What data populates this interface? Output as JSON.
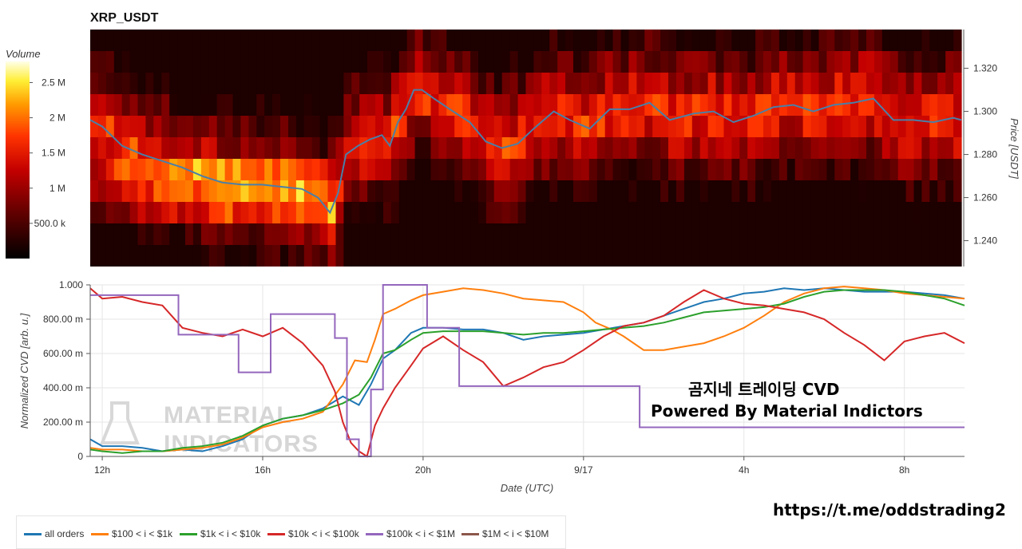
{
  "chart_data": [
    {
      "type": "heatmap",
      "title": "XRP_USDT",
      "ylabel": "Price [USDT]",
      "ylim": [
        1.228,
        1.338
      ],
      "y_ticks": [
        {
          "value": 1.24,
          "label": "1.240"
        },
        {
          "value": 1.26,
          "label": "1.260"
        },
        {
          "value": 1.28,
          "label": "1.280"
        },
        {
          "value": 1.3,
          "label": "1.300"
        },
        {
          "value": 1.32,
          "label": "1.320"
        }
      ],
      "colorbar": {
        "title": "Volume",
        "range": [
          0,
          2.8
        ],
        "ticks": [
          {
            "value": 0.5,
            "label": "500.0 k"
          },
          {
            "value": 1.0,
            "label": "1 M"
          },
          {
            "value": 1.5,
            "label": "1.5 M"
          },
          {
            "value": 2.0,
            "label": "2 M"
          },
          {
            "value": 2.5,
            "label": "2.5 M"
          }
        ]
      },
      "price_line": {
        "color": "#4a7fa8",
        "x": [
          11.7,
          12.0,
          12.5,
          13.0,
          13.5,
          14.0,
          14.5,
          15.0,
          15.5,
          16.0,
          16.5,
          17.0,
          17.4,
          17.7,
          17.9,
          18.1,
          18.4,
          18.7,
          19.0,
          19.2,
          19.4,
          19.6,
          19.8,
          20.0,
          20.3,
          20.7,
          21.2,
          21.6,
          22.0,
          22.4,
          22.8,
          23.3,
          23.7,
          24.2,
          24.7,
          25.2,
          25.7,
          26.2,
          26.8,
          27.3,
          27.8,
          28.3,
          28.8,
          29.3,
          29.8,
          30.3,
          30.8,
          31.3,
          31.8,
          32.3,
          32.8,
          33.3,
          33.5
        ],
        "y": [
          1.296,
          1.293,
          1.284,
          1.28,
          1.277,
          1.274,
          1.27,
          1.267,
          1.266,
          1.266,
          1.265,
          1.264,
          1.26,
          1.253,
          1.262,
          1.28,
          1.284,
          1.287,
          1.289,
          1.284,
          1.295,
          1.301,
          1.31,
          1.31,
          1.306,
          1.301,
          1.295,
          1.286,
          1.283,
          1.285,
          1.292,
          1.3,
          1.296,
          1.292,
          1.301,
          1.301,
          1.304,
          1.296,
          1.299,
          1.3,
          1.295,
          1.298,
          1.302,
          1.303,
          1.3,
          1.303,
          1.304,
          1.306,
          1.296,
          1.296,
          1.295,
          1.297,
          1.296
        ]
      }
    },
    {
      "type": "line",
      "title": "",
      "xlabel": "Date (UTC)",
      "ylabel": "Normalized CVD [arb. u.]",
      "xlim": [
        11.7,
        33.5
      ],
      "ylim": [
        0,
        1
      ],
      "x_ticks": [
        {
          "value": 12,
          "label": "12h"
        },
        {
          "value": 16,
          "label": "16h"
        },
        {
          "value": 20,
          "label": "20h"
        },
        {
          "value": 24,
          "label": "9/17"
        },
        {
          "value": 28,
          "label": "4h"
        },
        {
          "value": 32,
          "label": "8h"
        }
      ],
      "y_ticks": [
        {
          "value": 0,
          "label": "0"
        },
        {
          "value": 0.2,
          "label": "200.00 m"
        },
        {
          "value": 0.4,
          "label": "400.00 m"
        },
        {
          "value": 0.6,
          "label": "600.00 m"
        },
        {
          "value": 0.8,
          "label": "800.00 m"
        },
        {
          "value": 1.0,
          "label": "1.000"
        }
      ],
      "series": [
        {
          "name": "all orders",
          "color": "#1f77b4",
          "x": [
            11.7,
            12.0,
            12.5,
            13.0,
            13.5,
            14.0,
            14.5,
            15.0,
            15.5,
            16.0,
            16.5,
            17.0,
            17.5,
            18.0,
            18.4,
            18.7,
            19.0,
            19.3,
            19.7,
            20.0,
            20.5,
            21.0,
            21.5,
            22.0,
            22.5,
            23.0,
            23.5,
            24.0,
            24.5,
            25.0,
            25.5,
            26.0,
            26.5,
            27.0,
            27.5,
            28.0,
            28.5,
            29.0,
            29.5,
            30.0,
            30.5,
            31.0,
            31.5,
            32.0,
            32.5,
            33.0,
            33.5
          ],
          "y": [
            0.1,
            0.06,
            0.06,
            0.05,
            0.03,
            0.04,
            0.03,
            0.06,
            0.1,
            0.18,
            0.22,
            0.24,
            0.28,
            0.35,
            0.3,
            0.42,
            0.57,
            0.62,
            0.72,
            0.75,
            0.75,
            0.74,
            0.74,
            0.72,
            0.68,
            0.7,
            0.71,
            0.72,
            0.74,
            0.76,
            0.78,
            0.82,
            0.86,
            0.9,
            0.92,
            0.95,
            0.96,
            0.98,
            0.97,
            0.98,
            0.97,
            0.96,
            0.96,
            0.96,
            0.95,
            0.94,
            0.92
          ]
        },
        {
          "name": "$100 < i < $1k",
          "color": "#ff7f0e",
          "x": [
            11.7,
            12.0,
            12.5,
            13.0,
            13.5,
            14.0,
            14.5,
            15.0,
            15.5,
            16.0,
            16.5,
            17.0,
            17.5,
            18.0,
            18.3,
            18.6,
            18.8,
            19.0,
            19.3,
            19.7,
            20.0,
            20.5,
            21.0,
            21.5,
            22.0,
            22.5,
            23.0,
            23.5,
            24.0,
            24.3,
            24.7,
            25.0,
            25.5,
            26.0,
            26.5,
            27.0,
            27.5,
            28.0,
            28.5,
            29.0,
            29.5,
            30.0,
            30.5,
            31.0,
            31.5,
            32.0,
            32.5,
            33.0,
            33.5
          ],
          "y": [
            0.05,
            0.04,
            0.04,
            0.03,
            0.03,
            0.04,
            0.05,
            0.07,
            0.11,
            0.17,
            0.2,
            0.22,
            0.26,
            0.42,
            0.56,
            0.55,
            0.68,
            0.83,
            0.86,
            0.91,
            0.94,
            0.96,
            0.98,
            0.97,
            0.95,
            0.92,
            0.91,
            0.9,
            0.84,
            0.78,
            0.74,
            0.7,
            0.62,
            0.62,
            0.64,
            0.66,
            0.7,
            0.75,
            0.82,
            0.9,
            0.95,
            0.98,
            0.99,
            0.98,
            0.97,
            0.95,
            0.94,
            0.93,
            0.92
          ]
        },
        {
          "name": "$1k < i < $10k",
          "color": "#2ca02c",
          "x": [
            11.7,
            12.0,
            12.5,
            13.0,
            13.5,
            14.0,
            14.5,
            15.0,
            15.5,
            16.0,
            16.5,
            17.0,
            17.5,
            18.0,
            18.4,
            18.7,
            19.0,
            19.3,
            19.7,
            20.0,
            20.5,
            21.0,
            21.5,
            22.0,
            22.5,
            23.0,
            23.5,
            24.0,
            24.5,
            25.0,
            25.5,
            26.0,
            26.5,
            27.0,
            27.5,
            28.0,
            28.5,
            29.0,
            29.5,
            30.0,
            30.5,
            31.0,
            31.5,
            32.0,
            32.5,
            33.0,
            33.5
          ],
          "y": [
            0.04,
            0.03,
            0.02,
            0.03,
            0.03,
            0.05,
            0.06,
            0.08,
            0.12,
            0.18,
            0.22,
            0.24,
            0.27,
            0.31,
            0.36,
            0.46,
            0.6,
            0.62,
            0.68,
            0.72,
            0.73,
            0.73,
            0.73,
            0.72,
            0.71,
            0.72,
            0.72,
            0.73,
            0.74,
            0.75,
            0.76,
            0.78,
            0.81,
            0.84,
            0.85,
            0.86,
            0.87,
            0.89,
            0.93,
            0.96,
            0.97,
            0.97,
            0.97,
            0.96,
            0.94,
            0.92,
            0.88
          ]
        },
        {
          "name": "$10k < i < $100k",
          "color": "#d62728",
          "x": [
            11.7,
            12.0,
            12.5,
            13.0,
            13.5,
            14.0,
            14.5,
            15.0,
            15.5,
            16.0,
            16.5,
            17.0,
            17.5,
            17.8,
            18.0,
            18.2,
            18.4,
            18.6,
            18.8,
            19.0,
            19.3,
            19.7,
            20.0,
            20.5,
            21.0,
            21.5,
            22.0,
            22.5,
            23.0,
            23.5,
            24.0,
            24.5,
            25.0,
            25.5,
            26.0,
            26.5,
            27.0,
            27.5,
            28.0,
            28.5,
            29.0,
            29.5,
            30.0,
            30.5,
            31.0,
            31.5,
            32.0,
            32.5,
            33.0,
            33.5
          ],
          "y": [
            0.98,
            0.92,
            0.93,
            0.9,
            0.88,
            0.75,
            0.72,
            0.7,
            0.74,
            0.7,
            0.75,
            0.66,
            0.53,
            0.38,
            0.2,
            0.08,
            0.03,
            0.0,
            0.18,
            0.28,
            0.4,
            0.53,
            0.63,
            0.7,
            0.62,
            0.55,
            0.41,
            0.46,
            0.52,
            0.55,
            0.62,
            0.7,
            0.76,
            0.78,
            0.82,
            0.9,
            0.97,
            0.92,
            0.89,
            0.88,
            0.86,
            0.84,
            0.8,
            0.72,
            0.65,
            0.56,
            0.67,
            0.7,
            0.72,
            0.66
          ]
        },
        {
          "name": "$100k < i < $1M",
          "color": "#9467bd",
          "step": true,
          "x": [
            11.7,
            13.9,
            14.5,
            15.4,
            16.2,
            17.8,
            18.1,
            18.4,
            18.7,
            19.0,
            19.3,
            20.1,
            20.9,
            25.4,
            33.5
          ],
          "y": [
            0.94,
            0.71,
            0.71,
            0.49,
            0.83,
            0.69,
            0.1,
            0.0,
            0.39,
            1.0,
            1.0,
            0.75,
            0.41,
            0.17,
            0.17
          ]
        },
        {
          "name": "$1M < i < $10M",
          "color": "#8c564b",
          "x": [],
          "y": []
        }
      ]
    }
  ],
  "watermark": {
    "line1": "MATERIAL",
    "line2": "INDICATORS"
  },
  "overlay_text": {
    "line1": "곰지네 트레이딩 CVD",
    "line2": "Powered By Material Indictors"
  },
  "telegram_link": "https://t.me/oddstrading2"
}
